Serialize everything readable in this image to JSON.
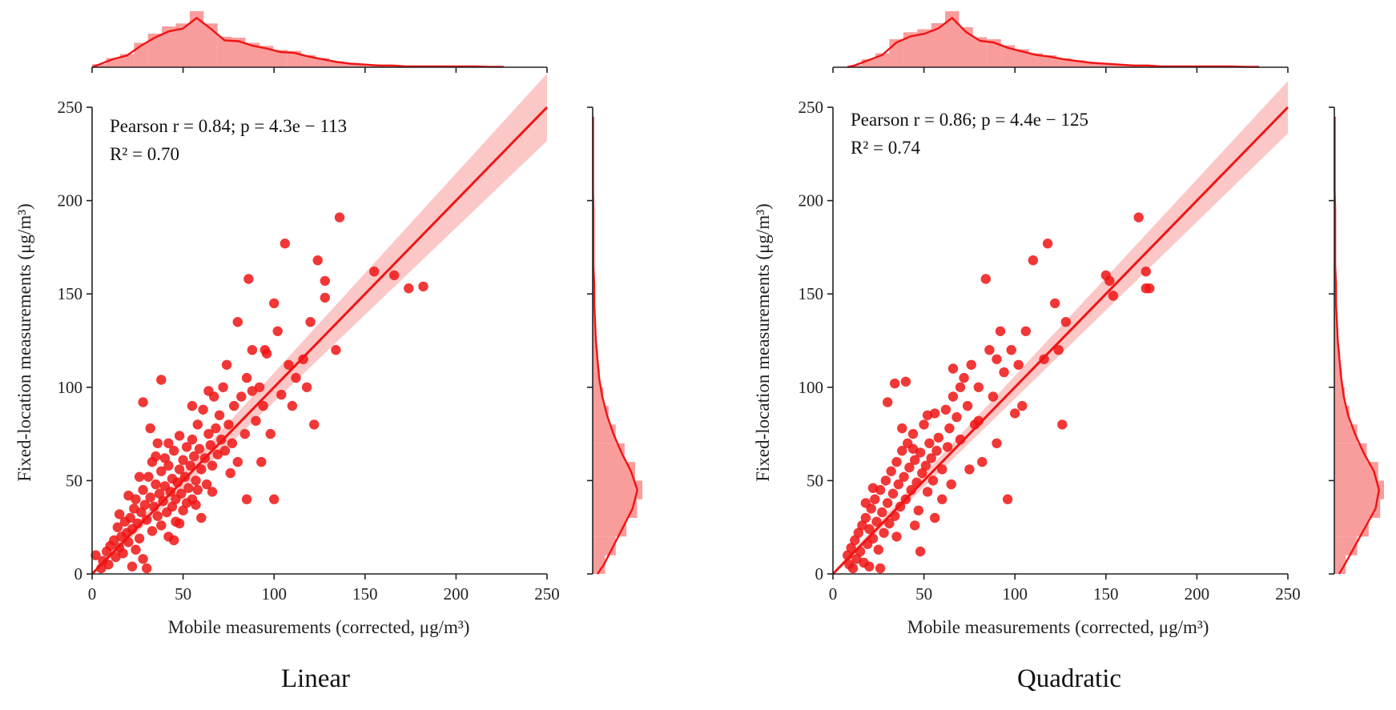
{
  "chart_data": [
    {
      "type": "scatter",
      "title": "Linear",
      "xlabel": "Mobile measurements (corrected, μg/m³)",
      "ylabel": "Fixed-location measurements (μg/m³)",
      "xlim": [
        0,
        250
      ],
      "ylim": [
        0,
        250
      ],
      "xticks": [
        "0",
        "50",
        "100",
        "150",
        "200",
        "250"
      ],
      "yticks": [
        "0",
        "50",
        "100",
        "150",
        "200",
        "250"
      ],
      "annotation": {
        "line1": "Pearson r = 0.84; p = 4.3e − 113",
        "line2": "R² = 0.70"
      },
      "color": "#f01414",
      "band_color": "#f9b4b4",
      "regression": {
        "slope": 1.0,
        "intercept": 0,
        "ci_half_width_at_end": 18
      },
      "points": [
        [
          2,
          10
        ],
        [
          5,
          3
        ],
        [
          6,
          7
        ],
        [
          8,
          12
        ],
        [
          9,
          5
        ],
        [
          10,
          15
        ],
        [
          12,
          18
        ],
        [
          13,
          9
        ],
        [
          14,
          25
        ],
        [
          15,
          14
        ],
        [
          16,
          20
        ],
        [
          17,
          11
        ],
        [
          18,
          28
        ],
        [
          19,
          22
        ],
        [
          20,
          17
        ],
        [
          21,
          30
        ],
        [
          22,
          24
        ],
        [
          23,
          35
        ],
        [
          24,
          13
        ],
        [
          24,
          40
        ],
        [
          25,
          27
        ],
        [
          26,
          19
        ],
        [
          27,
          33
        ],
        [
          28,
          45
        ],
        [
          28,
          8
        ],
        [
          29,
          37
        ],
        [
          30,
          29
        ],
        [
          31,
          52
        ],
        [
          32,
          41
        ],
        [
          33,
          23
        ],
        [
          33,
          60
        ],
        [
          34,
          36
        ],
        [
          35,
          48
        ],
        [
          36,
          31
        ],
        [
          36,
          70
        ],
        [
          37,
          43
        ],
        [
          38,
          26
        ],
        [
          38,
          55
        ],
        [
          39,
          39
        ],
        [
          40,
          47
        ],
        [
          40,
          62
        ],
        [
          41,
          33
        ],
        [
          42,
          58
        ],
        [
          42,
          20
        ],
        [
          43,
          44
        ],
        [
          44,
          51
        ],
        [
          44,
          36
        ],
        [
          45,
          66
        ],
        [
          46,
          40
        ],
        [
          46,
          28
        ],
        [
          47,
          49
        ],
        [
          48,
          56
        ],
        [
          48,
          74
        ],
        [
          49,
          43
        ],
        [
          50,
          61
        ],
        [
          50,
          34
        ],
        [
          51,
          52
        ],
        [
          52,
          68
        ],
        [
          53,
          46
        ],
        [
          54,
          58
        ],
        [
          55,
          40
        ],
        [
          55,
          72
        ],
        [
          56,
          63
        ],
        [
          57,
          50
        ],
        [
          58,
          80
        ],
        [
          58,
          45
        ],
        [
          59,
          67
        ],
        [
          60,
          56
        ],
        [
          61,
          88
        ],
        [
          62,
          62
        ],
        [
          63,
          48
        ],
        [
          64,
          75
        ],
        [
          65,
          69
        ],
        [
          66,
          58
        ],
        [
          67,
          95
        ],
        [
          68,
          78
        ],
        [
          69,
          64
        ],
        [
          70,
          85
        ],
        [
          71,
          72
        ],
        [
          72,
          100
        ],
        [
          73,
          66
        ],
        [
          74,
          112
        ],
        [
          75,
          80
        ],
        [
          77,
          70
        ],
        [
          78,
          90
        ],
        [
          80,
          135
        ],
        [
          80,
          60
        ],
        [
          82,
          95
        ],
        [
          84,
          75
        ],
        [
          85,
          105
        ],
        [
          86,
          158
        ],
        [
          88,
          120
        ],
        [
          90,
          82
        ],
        [
          92,
          100
        ],
        [
          94,
          90
        ],
        [
          96,
          118
        ],
        [
          98,
          75
        ],
        [
          100,
          145
        ],
        [
          100,
          40
        ],
        [
          102,
          130
        ],
        [
          104,
          96
        ],
        [
          106,
          177
        ],
        [
          108,
          112
        ],
        [
          112,
          105
        ],
        [
          116,
          115
        ],
        [
          120,
          135
        ],
        [
          122,
          80
        ],
        [
          124,
          168
        ],
        [
          128,
          148
        ],
        [
          128,
          157
        ],
        [
          134,
          120
        ],
        [
          136,
          191
        ],
        [
          155,
          162
        ],
        [
          166,
          160
        ],
        [
          174,
          153
        ],
        [
          182,
          154
        ],
        [
          28,
          92
        ],
        [
          32,
          78
        ],
        [
          38,
          104
        ],
        [
          22,
          4
        ],
        [
          30,
          3
        ],
        [
          45,
          18
        ],
        [
          52,
          38
        ],
        [
          60,
          30
        ],
        [
          20,
          42
        ],
        [
          15,
          32
        ],
        [
          26,
          52
        ],
        [
          35,
          63
        ],
        [
          48,
          27
        ],
        [
          57,
          37
        ],
        [
          66,
          44
        ],
        [
          76,
          54
        ],
        [
          85,
          40
        ],
        [
          88,
          98
        ],
        [
          93,
          60
        ],
        [
          42,
          70
        ],
        [
          55,
          90
        ],
        [
          64,
          98
        ],
        [
          95,
          120
        ],
        [
          110,
          90
        ],
        [
          118,
          100
        ]
      ]
    },
    {
      "type": "scatter",
      "title": "Quadratic",
      "xlabel": "Mobile measurements (corrected, μg/m³)",
      "ylabel": "Fixed-location measurements (μg/m³)",
      "xlim": [
        0,
        250
      ],
      "ylim": [
        0,
        250
      ],
      "xticks": [
        "0",
        "50",
        "100",
        "150",
        "200",
        "250"
      ],
      "yticks": [
        "0",
        "50",
        "100",
        "150",
        "200",
        "250"
      ],
      "annotation": {
        "line1": "Pearson r = 0.86; p = 4.4e − 125",
        "line2": "R² = 0.74"
      },
      "color": "#f01414",
      "band_color": "#f9b4b4",
      "regression": {
        "slope": 1.0,
        "intercept": 0,
        "ci_half_width_at_end": 14
      },
      "points": [
        [
          8,
          10
        ],
        [
          9,
          5
        ],
        [
          10,
          14
        ],
        [
          11,
          3
        ],
        [
          12,
          18
        ],
        [
          13,
          8
        ],
        [
          14,
          22
        ],
        [
          15,
          12
        ],
        [
          16,
          26
        ],
        [
          17,
          6
        ],
        [
          18,
          30
        ],
        [
          19,
          16
        ],
        [
          20,
          24
        ],
        [
          21,
          35
        ],
        [
          22,
          19
        ],
        [
          23,
          40
        ],
        [
          24,
          28
        ],
        [
          25,
          13
        ],
        [
          26,
          45
        ],
        [
          27,
          33
        ],
        [
          28,
          22
        ],
        [
          29,
          50
        ],
        [
          30,
          38
        ],
        [
          31,
          27
        ],
        [
          32,
          55
        ],
        [
          33,
          43
        ],
        [
          34,
          31
        ],
        [
          35,
          60
        ],
        [
          36,
          48
        ],
        [
          37,
          36
        ],
        [
          38,
          66
        ],
        [
          39,
          52
        ],
        [
          40,
          40
        ],
        [
          41,
          70
        ],
        [
          42,
          57
        ],
        [
          43,
          45
        ],
        [
          44,
          75
        ],
        [
          45,
          61
        ],
        [
          46,
          49
        ],
        [
          47,
          34
        ],
        [
          48,
          65
        ],
        [
          49,
          54
        ],
        [
          50,
          80
        ],
        [
          51,
          58
        ],
        [
          52,
          44
        ],
        [
          53,
          70
        ],
        [
          54,
          62
        ],
        [
          55,
          50
        ],
        [
          56,
          86
        ],
        [
          57,
          66
        ],
        [
          58,
          73
        ],
        [
          60,
          56
        ],
        [
          62,
          88
        ],
        [
          63,
          68
        ],
        [
          64,
          78
        ],
        [
          66,
          95
        ],
        [
          68,
          84
        ],
        [
          70,
          72
        ],
        [
          72,
          105
        ],
        [
          74,
          90
        ],
        [
          76,
          112
        ],
        [
          78,
          80
        ],
        [
          80,
          100
        ],
        [
          82,
          60
        ],
        [
          84,
          158
        ],
        [
          86,
          120
        ],
        [
          88,
          95
        ],
        [
          90,
          115
        ],
        [
          92,
          130
        ],
        [
          94,
          108
        ],
        [
          96,
          40
        ],
        [
          98,
          120
        ],
        [
          100,
          86
        ],
        [
          102,
          112
        ],
        [
          106,
          130
        ],
        [
          110,
          168
        ],
        [
          116,
          115
        ],
        [
          118,
          177
        ],
        [
          122,
          145
        ],
        [
          124,
          120
        ],
        [
          126,
          80
        ],
        [
          128,
          135
        ],
        [
          150,
          160
        ],
        [
          152,
          157
        ],
        [
          154,
          149
        ],
        [
          168,
          191
        ],
        [
          172,
          162
        ],
        [
          172,
          153
        ],
        [
          174,
          153
        ],
        [
          30,
          92
        ],
        [
          34,
          102
        ],
        [
          40,
          103
        ],
        [
          20,
          4
        ],
        [
          26,
          3
        ],
        [
          48,
          12
        ],
        [
          56,
          30
        ],
        [
          60,
          40
        ],
        [
          18,
          38
        ],
        [
          22,
          46
        ],
        [
          38,
          78
        ],
        [
          44,
          67
        ],
        [
          52,
          85
        ],
        [
          66,
          110
        ],
        [
          70,
          100
        ],
        [
          80,
          82
        ],
        [
          90,
          70
        ],
        [
          104,
          90
        ],
        [
          35,
          20
        ],
        [
          45,
          26
        ],
        [
          65,
          48
        ],
        [
          75,
          56
        ]
      ]
    }
  ],
  "marginals": {
    "top_hist_left": [
      3,
      9,
      13,
      24,
      33,
      40,
      43,
      55,
      43,
      30,
      29,
      24,
      21,
      17,
      16,
      12,
      9,
      6,
      4,
      3,
      2,
      2,
      1,
      1,
      1,
      1,
      1,
      1,
      0.5,
      0.5
    ],
    "top_hist_right": [
      2,
      8,
      14,
      28,
      35,
      38,
      44,
      56,
      40,
      30,
      28,
      22,
      18,
      14,
      12,
      9,
      7,
      5,
      4,
      3,
      2,
      2,
      1,
      1,
      1,
      1,
      1,
      1,
      0.5,
      0.5
    ],
    "side_hist_left": [
      14,
      26,
      38,
      50,
      56,
      48,
      36,
      26,
      18,
      12,
      8,
      6,
      4,
      3,
      2,
      2,
      1,
      1,
      1,
      1,
      0.5,
      0.5,
      0.5,
      0.5,
      0.5
    ],
    "side_hist_right": [
      12,
      24,
      36,
      48,
      52,
      46,
      34,
      24,
      16,
      11,
      8,
      6,
      4,
      3,
      2,
      2,
      1,
      1,
      1,
      1,
      0.5,
      0.5,
      0.5,
      0.5,
      0.5
    ]
  }
}
